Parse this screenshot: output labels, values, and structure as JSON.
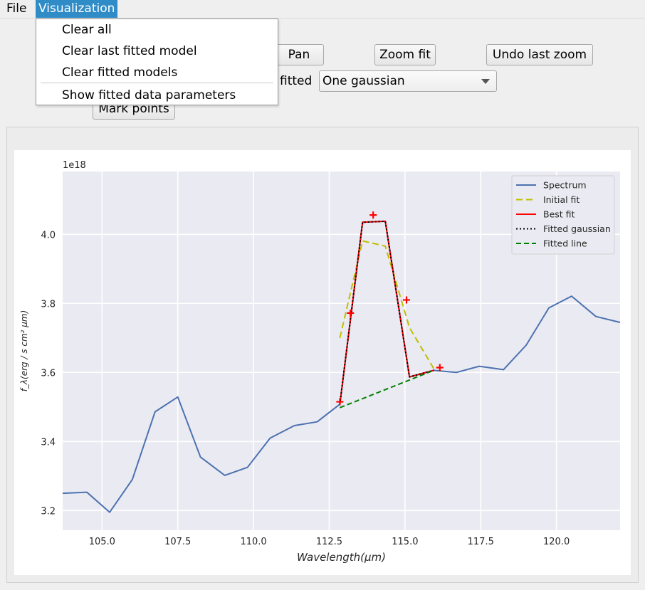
{
  "menubar": {
    "file": "File",
    "visualization": "Visualization"
  },
  "visualization_menu": {
    "items": [
      "Clear all",
      "Clear last fitted model",
      "Clear fitted models",
      "Show fitted data parameters"
    ]
  },
  "toolbar": {
    "pan": "Pan",
    "zoom_fit": "Zoom fit",
    "undo_zoom": "Undo last zoom",
    "fitted_label": "fitted",
    "model_select": "One gaussian",
    "mark_points": "Mark points"
  },
  "chart_data": {
    "type": "line",
    "xlabel": "Wavelength(μm)",
    "ylabel": "f_λ(erg / s cm² μm)",
    "offset_text": "1e18",
    "xlim": [
      103.7,
      122.1
    ],
    "ylim": [
      3.143,
      4.182
    ],
    "xticks": [
      105.0,
      107.5,
      110.0,
      112.5,
      115.0,
      117.5,
      120.0
    ],
    "xtick_labels": [
      "105.0",
      "107.5",
      "110.0",
      "112.5",
      "115.0",
      "117.5",
      "120.0"
    ],
    "yticks": [
      3.2,
      3.4,
      3.6,
      3.8,
      4.0
    ],
    "ytick_labels": [
      "3.2",
      "3.4",
      "3.6",
      "3.8",
      "4.0"
    ],
    "grid": true,
    "legend_position": "top-right",
    "series": [
      {
        "name": "Spectrum",
        "color": "#4c72b0",
        "dash": "solid",
        "width": 2,
        "x": [
          103.7,
          104.5,
          105.25,
          106.0,
          106.75,
          107.5,
          108.25,
          109.05,
          109.8,
          110.55,
          111.35,
          112.1,
          112.85,
          113.6,
          114.35,
          115.15,
          115.95,
          116.7,
          117.45,
          118.25,
          119.0,
          119.75,
          120.5,
          121.3,
          122.1
        ],
        "y": [
          3.25,
          3.253,
          3.195,
          3.29,
          3.486,
          3.529,
          3.355,
          3.302,
          3.325,
          3.41,
          3.446,
          3.457,
          3.508,
          4.035,
          4.038,
          3.587,
          3.606,
          3.6,
          3.618,
          3.608,
          3.679,
          3.787,
          3.821,
          3.762,
          3.745
        ]
      },
      {
        "name": "Initial fit",
        "color": "#bfbf00",
        "dash": "9,5",
        "width": 2,
        "x": [
          112.85,
          113.6,
          114.35,
          115.15,
          115.95
        ],
        "y": [
          3.7,
          3.981,
          3.966,
          3.73,
          3.611
        ]
      },
      {
        "name": "Best fit",
        "color": "#ff0000",
        "dash": "solid",
        "width": 2,
        "x": [
          112.85,
          113.6,
          114.35,
          115.15,
          115.95
        ],
        "y": [
          3.508,
          4.035,
          4.038,
          3.587,
          3.606
        ]
      },
      {
        "name": "Fitted gaussian",
        "color": "#000000",
        "dash": "2,3",
        "width": 2,
        "x": [
          112.85,
          113.6,
          114.35,
          115.15,
          115.95
        ],
        "y": [
          3.508,
          4.035,
          4.038,
          3.587,
          3.606
        ]
      },
      {
        "name": "Fitted line",
        "color": "#008000",
        "dash": "7,4",
        "width": 2,
        "x": [
          112.85,
          115.95
        ],
        "y": [
          3.498,
          3.606
        ]
      }
    ],
    "marked_points": {
      "color": "#ff0000",
      "x": [
        112.85,
        113.2,
        113.95,
        115.05,
        116.15
      ],
      "y": [
        3.515,
        3.772,
        4.056,
        3.81,
        3.614
      ]
    }
  }
}
